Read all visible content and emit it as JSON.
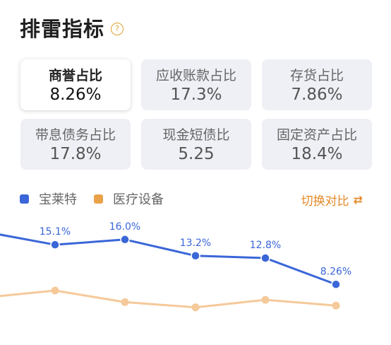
{
  "header": {
    "title": "排雷指标",
    "help_icon": "question-circle-icon",
    "help_glyph": "?"
  },
  "metrics": [
    {
      "label": "商誉占比",
      "value": "8.26%",
      "active": true
    },
    {
      "label": "应收账款占比",
      "value": "17.3%",
      "active": false
    },
    {
      "label": "存货占比",
      "value": "7.86%",
      "active": false
    },
    {
      "label": "带息债务占比",
      "value": "17.8%",
      "active": false
    },
    {
      "label": "现金短债比",
      "value": "5.25",
      "active": false
    },
    {
      "label": "固定资产占比",
      "value": "18.4%",
      "active": false
    }
  ],
  "legend": {
    "series_a": {
      "name": "宝莱特",
      "color": "#3a66d8"
    },
    "series_b": {
      "name": "医疗设备",
      "color": "#eaa24a"
    }
  },
  "switch": {
    "label": "切换对比",
    "icon": "switch-compare-icon"
  },
  "chart_data": {
    "type": "line",
    "series": [
      {
        "name": "宝莱特",
        "color": "#3a66d8",
        "values": [
          17.3,
          15.1,
          16.0,
          13.2,
          12.8,
          8.26
        ],
        "labels": [
          "",
          "15.1%",
          "16.0%",
          "13.2%",
          "12.8%",
          "8.26%"
        ]
      },
      {
        "name": "医疗设备",
        "color": "#f5c99a",
        "values": [
          6.0,
          7.2,
          5.2,
          4.3,
          5.6,
          4.6
        ]
      }
    ],
    "ylim": [
      0,
      20
    ],
    "grid": false
  }
}
